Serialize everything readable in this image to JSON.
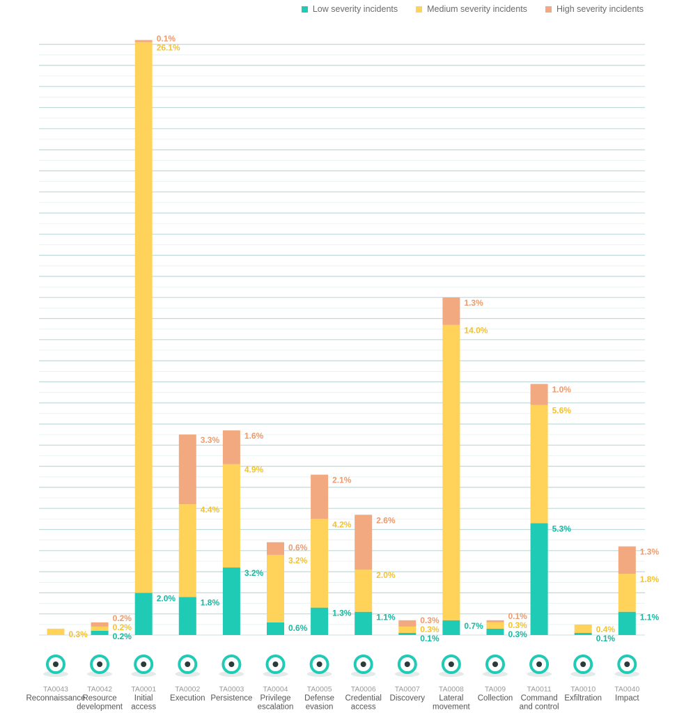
{
  "legend": {
    "low": "Low severity incidents",
    "medium": "Medium severity incidents",
    "high": "High severity incidents"
  },
  "colors": {
    "low": "#1fcbb4",
    "medium": "#ffd25a",
    "high": "#f2a97f",
    "grid": "#cfe0e0",
    "axis_text": "#555555",
    "code_text": "#9a9a9a"
  },
  "chart_data": {
    "type": "bar",
    "stacked": true,
    "grid": true,
    "legend_position": "top-right",
    "ylim": [
      0,
      28.3
    ],
    "categories": [
      {
        "code": "TA0043",
        "name": [
          "Reconnaissance"
        ],
        "icon": "magnifier-icon"
      },
      {
        "code": "TA0042",
        "name": [
          "Resource",
          "development"
        ],
        "icon": "hacker-brick-wall-icon"
      },
      {
        "code": "TA0001",
        "name": [
          "Initial",
          "access"
        ],
        "icon": "person-doorway-icon"
      },
      {
        "code": "TA0002",
        "name": [
          "Execution"
        ],
        "icon": "monitor-gears-icon"
      },
      {
        "code": "TA0003",
        "name": [
          "Persistence"
        ],
        "icon": "anchor-icon"
      },
      {
        "code": "TA0004",
        "name": [
          "Privilege",
          "escalation"
        ],
        "icon": "escalator-icon"
      },
      {
        "code": "TA0005",
        "name": [
          "Defense",
          "evasion"
        ],
        "icon": "cut-padlock-icon"
      },
      {
        "code": "TA0006",
        "name": [
          "Credential",
          "access"
        ],
        "icon": "keys-icon"
      },
      {
        "code": "TA0007",
        "name": [
          "Discovery"
        ],
        "icon": "binoculars-icon"
      },
      {
        "code": "TA0008",
        "name": [
          "Lateral",
          "movement"
        ],
        "icon": "network-cubes-icon"
      },
      {
        "code": "TA009",
        "name": [
          "Collection"
        ],
        "icon": "monitor-data-icon"
      },
      {
        "code": "TA0011",
        "name": [
          "Command",
          "and control"
        ],
        "icon": "server-rack-icon"
      },
      {
        "code": "TA0010",
        "name": [
          "Exfiltration"
        ],
        "icon": "person-data-icon"
      },
      {
        "code": "TA0040",
        "name": [
          "Impact"
        ],
        "icon": "explosion-graph-icon"
      }
    ],
    "series": [
      {
        "name": "Low severity incidents",
        "key": "low",
        "values": [
          0,
          0.2,
          2.0,
          1.8,
          3.2,
          0.6,
          1.3,
          1.1,
          0.1,
          0.7,
          0.3,
          5.3,
          0.1,
          1.1
        ]
      },
      {
        "name": "Medium severity incidents",
        "key": "medium",
        "values": [
          0.3,
          0.2,
          26.1,
          4.4,
          4.9,
          3.2,
          4.2,
          2.0,
          0.3,
          14.0,
          0.3,
          5.6,
          0.4,
          1.8
        ]
      },
      {
        "name": "High severity incidents",
        "key": "high",
        "values": [
          0,
          0.2,
          0.1,
          3.3,
          1.6,
          0.6,
          2.1,
          2.6,
          0.3,
          1.3,
          0.1,
          1.0,
          0,
          1.3
        ]
      }
    ],
    "labels": {
      "low": [
        "",
        "0.2%",
        "2.0%",
        "1.8%",
        "3.2%",
        "0.6%",
        "1.3%",
        "1.1%",
        "0.1%",
        "0.7%",
        "0.3%",
        "5.3%",
        "0.1%",
        "1.1%"
      ],
      "medium": [
        "0.3%",
        "0.2%",
        "26.1%",
        "4.4%",
        "4.9%",
        "3.2%",
        "4.2%",
        "2.0%",
        "0.3%",
        "14.0%",
        "0.3%",
        "5.6%",
        "0.4%",
        "1.8%"
      ],
      "high": [
        "",
        "0.2%",
        "0.1%",
        "3.3%",
        "1.6%",
        "0.6%",
        "2.1%",
        "2.6%",
        "0.3%",
        "1.3%",
        "0.1%",
        "1.0%",
        "",
        "1.3%"
      ]
    }
  }
}
